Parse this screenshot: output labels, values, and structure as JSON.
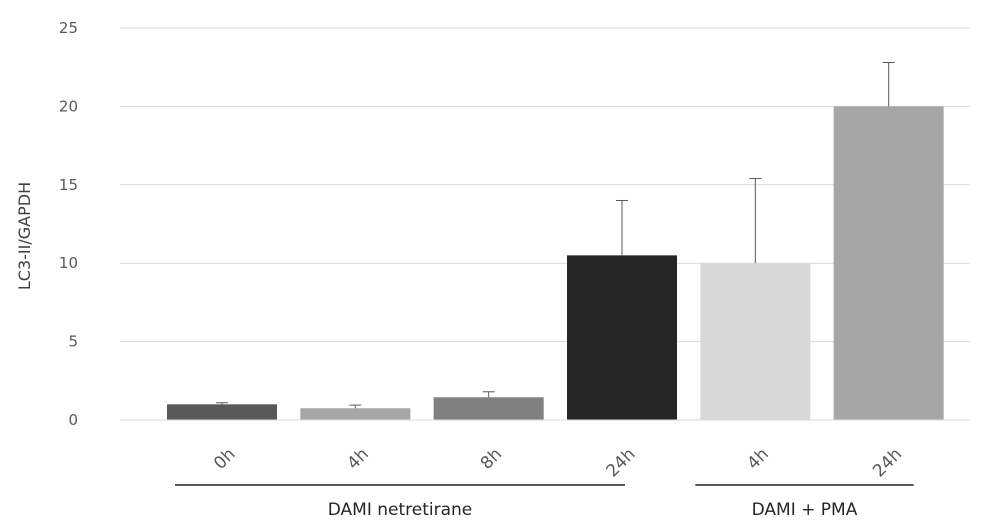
{
  "chart_data": {
    "type": "bar",
    "ylabel": "LC3-II/GAPDH",
    "xlabel": "",
    "ylim": [
      0,
      25
    ],
    "yticks": [
      0,
      5,
      10,
      15,
      20,
      25
    ],
    "grid": true,
    "legend": "none",
    "categories": [
      "0h",
      "4h",
      "8h",
      "24h",
      "4h",
      "24h"
    ],
    "values": [
      1.0,
      0.75,
      1.45,
      10.5,
      10.0,
      20.0
    ],
    "error_plus": [
      0.1,
      0.2,
      0.35,
      3.5,
      5.4,
      2.8
    ],
    "colors": [
      "#595959",
      "#a6a6a6",
      "#808080",
      "#262626",
      "#d9d9d9",
      "#a6a6a6"
    ],
    "groups": [
      {
        "label": "DAMI netretirane",
        "categories": [
          0,
          1,
          2,
          3
        ]
      },
      {
        "label": "DAMI + PMA",
        "categories": [
          4,
          5
        ]
      }
    ]
  }
}
